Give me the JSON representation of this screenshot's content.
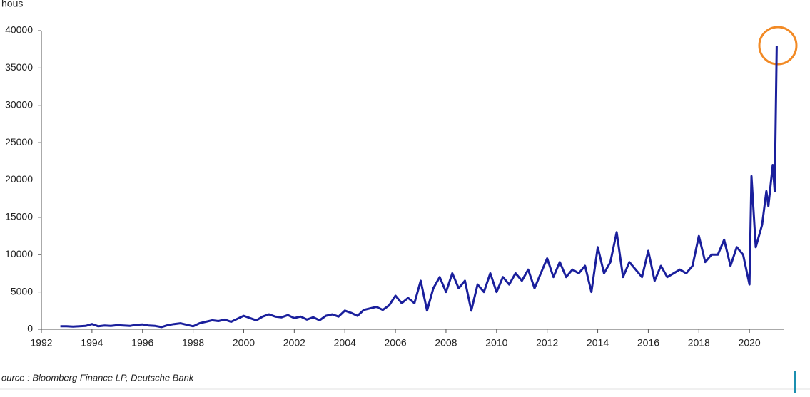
{
  "chart_data": {
    "type": "line",
    "title": "hous",
    "source": "ource : Bloomberg Finance LP, Deutsche Bank",
    "xlim": [
      1992,
      2021.35
    ],
    "xticks": [
      1992,
      1994,
      1996,
      1998,
      2000,
      2002,
      2004,
      2006,
      2008,
      2010,
      2012,
      2014,
      2016,
      2018,
      2020
    ],
    "ylim": [
      0,
      40000
    ],
    "yticks": [
      0,
      5000,
      10000,
      15000,
      20000,
      25000,
      30000,
      35000,
      40000
    ],
    "grid": false,
    "x": [
      1992.75,
      1993,
      1993.25,
      1993.5,
      1993.75,
      1994,
      1994.25,
      1994.5,
      1994.75,
      1995,
      1995.25,
      1995.5,
      1995.75,
      1996,
      1996.25,
      1996.5,
      1996.75,
      1997,
      1997.25,
      1997.5,
      1997.75,
      1998,
      1998.25,
      1998.5,
      1998.75,
      1999,
      1999.25,
      1999.5,
      1999.75,
      2000,
      2000.25,
      2000.5,
      2000.75,
      2001,
      2001.25,
      2001.5,
      2001.75,
      2002,
      2002.25,
      2002.5,
      2002.75,
      2003,
      2003.25,
      2003.5,
      2003.75,
      2004,
      2004.25,
      2004.5,
      2004.75,
      2005,
      2005.25,
      2005.5,
      2005.75,
      2006,
      2006.25,
      2006.5,
      2006.75,
      2007,
      2007.25,
      2007.5,
      2007.75,
      2008,
      2008.25,
      2008.5,
      2008.75,
      2009,
      2009.25,
      2009.5,
      2009.75,
      2010,
      2010.25,
      2010.5,
      2010.75,
      2011,
      2011.25,
      2011.5,
      2011.75,
      2012,
      2012.25,
      2012.5,
      2012.75,
      2013,
      2013.25,
      2013.5,
      2013.75,
      2014,
      2014.25,
      2014.5,
      2014.75,
      2015,
      2015.25,
      2015.5,
      2015.75,
      2016,
      2016.25,
      2016.5,
      2016.75,
      2017,
      2017.25,
      2017.5,
      2017.75,
      2018,
      2018.25,
      2018.5,
      2018.75,
      2019,
      2019.25,
      2019.5,
      2019.75,
      2020,
      2020.08,
      2020.25,
      2020.5,
      2020.67,
      2020.75,
      2020.92,
      2021,
      2021.08
    ],
    "series": [
      {
        "name": "hous",
        "color": "#1a1f9c",
        "values": [
          400,
          400,
          350,
          400,
          450,
          700,
          400,
          500,
          450,
          550,
          500,
          450,
          600,
          650,
          500,
          450,
          300,
          550,
          700,
          800,
          600,
          400,
          800,
          1000,
          1200,
          1100,
          1300,
          1000,
          1400,
          1800,
          1500,
          1200,
          1700,
          2000,
          1700,
          1600,
          1900,
          1500,
          1700,
          1300,
          1600,
          1200,
          1800,
          2000,
          1700,
          2500,
          2200,
          1800,
          2600,
          2800,
          3000,
          2600,
          3200,
          4500,
          3500,
          4200,
          3500,
          6500,
          2500,
          5500,
          7000,
          5000,
          7500,
          5500,
          6500,
          2500,
          6000,
          5000,
          7500,
          5000,
          7000,
          6000,
          7500,
          6500,
          8000,
          5500,
          7500,
          9500,
          7000,
          9000,
          7000,
          8000,
          7500,
          8500,
          5000,
          11000,
          7500,
          9000,
          13000,
          7000,
          9000,
          8000,
          7000,
          10500,
          6500,
          8500,
          7000,
          7500,
          8000,
          7500,
          8500,
          12500,
          9000,
          10000,
          10000,
          12000,
          8500,
          11000,
          10000,
          6000,
          20500,
          11000,
          14000,
          18500,
          16500,
          22000,
          18500,
          38000
        ]
      }
    ]
  }
}
